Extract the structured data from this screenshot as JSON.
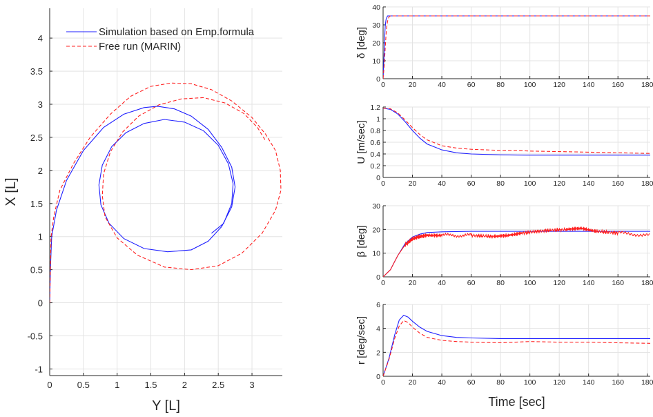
{
  "colors": {
    "sim": "#1f1fff",
    "marin": "#ff2020",
    "grid": "#e3e3e3",
    "axis": "#262626"
  },
  "chart_data": [
    {
      "type": "line",
      "xlabel": "Y [L]",
      "ylabel": "X [L]",
      "xlim": [
        0,
        3.45
      ],
      "ylim": [
        -1.1,
        4.45
      ],
      "xticks": [
        "0",
        "0.5",
        "1",
        "1.5",
        "2",
        "2.5",
        "3"
      ],
      "yticks": [
        "-1",
        "-0.5",
        "0",
        "0.5",
        "1",
        "1.5",
        "2",
        "2.5",
        "3",
        "3.5",
        "4"
      ],
      "grid": true,
      "legend_position": "top-left",
      "series": [
        {
          "name": "Simulation based on Emp.formula",
          "style": "solid",
          "points": [
            [
              0,
              0
            ],
            [
              0.01,
              0.5
            ],
            [
              0.03,
              1.0
            ],
            [
              0.1,
              1.4
            ],
            [
              0.25,
              1.85
            ],
            [
              0.5,
              2.3
            ],
            [
              0.8,
              2.65
            ],
            [
              1.1,
              2.85
            ],
            [
              1.4,
              2.95
            ],
            [
              1.6,
              2.97
            ],
            [
              1.85,
              2.93
            ],
            [
              2.1,
              2.82
            ],
            [
              2.35,
              2.62
            ],
            [
              2.55,
              2.35
            ],
            [
              2.7,
              2.05
            ],
            [
              2.75,
              1.75
            ],
            [
              2.7,
              1.45
            ],
            [
              2.55,
              1.15
            ],
            [
              2.35,
              0.93
            ],
            [
              2.1,
              0.8
            ],
            [
              1.75,
              0.77
            ],
            [
              1.4,
              0.82
            ],
            [
              1.1,
              0.97
            ],
            [
              0.88,
              1.2
            ],
            [
              0.76,
              1.48
            ],
            [
              0.73,
              1.78
            ],
            [
              0.78,
              2.08
            ],
            [
              0.92,
              2.36
            ],
            [
              1.13,
              2.57
            ],
            [
              1.4,
              2.71
            ],
            [
              1.7,
              2.77
            ],
            [
              2.0,
              2.73
            ],
            [
              2.28,
              2.6
            ],
            [
              2.5,
              2.38
            ],
            [
              2.65,
              2.1
            ],
            [
              2.72,
              1.8
            ],
            [
              2.7,
              1.5
            ],
            [
              2.58,
              1.2
            ],
            [
              2.4,
              1.05
            ]
          ]
        },
        {
          "name": "Free run (MARIN)",
          "style": "dashed",
          "points": [
            [
              0,
              0
            ],
            [
              0.01,
              0.5
            ],
            [
              0.02,
              1.0
            ],
            [
              0.06,
              1.3
            ],
            [
              0.15,
              1.7
            ],
            [
              0.35,
              2.1
            ],
            [
              0.6,
              2.5
            ],
            [
              0.9,
              2.85
            ],
            [
              1.2,
              3.12
            ],
            [
              1.5,
              3.27
            ],
            [
              1.8,
              3.32
            ],
            [
              2.1,
              3.31
            ],
            [
              2.4,
              3.22
            ],
            [
              2.7,
              3.05
            ],
            [
              3.0,
              2.8
            ],
            [
              3.2,
              2.55
            ],
            [
              3.35,
              2.3
            ],
            [
              3.42,
              2.0
            ],
            [
              3.43,
              1.7
            ],
            [
              3.35,
              1.4
            ],
            [
              3.15,
              1.05
            ],
            [
              2.85,
              0.75
            ],
            [
              2.5,
              0.56
            ],
            [
              2.1,
              0.5
            ],
            [
              1.7,
              0.54
            ],
            [
              1.3,
              0.72
            ],
            [
              1.0,
              0.98
            ],
            [
              0.82,
              1.3
            ],
            [
              0.78,
              1.62
            ],
            [
              0.8,
              1.95
            ],
            [
              0.9,
              2.28
            ],
            [
              1.08,
              2.58
            ],
            [
              1.32,
              2.82
            ],
            [
              1.62,
              2.99
            ],
            [
              1.95,
              3.08
            ],
            [
              2.28,
              3.1
            ],
            [
              2.6,
              3.02
            ],
            [
              2.88,
              2.86
            ],
            [
              3.08,
              2.65
            ],
            [
              3.2,
              2.45
            ]
          ]
        }
      ]
    },
    {
      "type": "line",
      "ylabel": "δ [deg]",
      "xlim": [
        0,
        182
      ],
      "ylim": [
        0,
        40
      ],
      "xticks": [
        "0",
        "20",
        "40",
        "60",
        "80",
        "100",
        "120",
        "140",
        "160",
        "180"
      ],
      "yticks": [
        "0",
        "10",
        "20",
        "30",
        "40"
      ],
      "grid": true,
      "series": [
        {
          "name": "",
          "style": "solid",
          "color": "sim",
          "points": [
            [
              0,
              0
            ],
            [
              0.5,
              10
            ],
            [
              1,
              22
            ],
            [
              1.5,
              30
            ],
            [
              2,
              33
            ],
            [
              3,
              35
            ],
            [
              182,
              35
            ]
          ]
        },
        {
          "name": "",
          "style": "dashed",
          "color": "marin",
          "points": [
            [
              0,
              0
            ],
            [
              0.8,
              8
            ],
            [
              1.5,
              18
            ],
            [
              2.2,
              27
            ],
            [
              3,
              32
            ],
            [
              4,
              34.5
            ],
            [
              5,
              35
            ],
            [
              182,
              35
            ]
          ]
        }
      ]
    },
    {
      "type": "line",
      "ylabel": "U [m/sec]",
      "xlim": [
        0,
        182
      ],
      "ylim": [
        0,
        1.2
      ],
      "xticks": [
        "0",
        "20",
        "40",
        "60",
        "80",
        "100",
        "120",
        "140",
        "160",
        "180"
      ],
      "yticks": [
        "0",
        "0.2",
        "0.4",
        "0.6",
        "0.8",
        "1",
        "1.2"
      ],
      "grid": true,
      "series": [
        {
          "name": "",
          "style": "solid",
          "color": "sim",
          "points": [
            [
              0,
              1.18
            ],
            [
              5,
              1.16
            ],
            [
              10,
              1.08
            ],
            [
              15,
              0.95
            ],
            [
              20,
              0.8
            ],
            [
              25,
              0.67
            ],
            [
              30,
              0.57
            ],
            [
              40,
              0.47
            ],
            [
              50,
              0.42
            ],
            [
              60,
              0.4
            ],
            [
              80,
              0.385
            ],
            [
              100,
              0.38
            ],
            [
              140,
              0.38
            ],
            [
              182,
              0.38
            ]
          ]
        },
        {
          "name": "",
          "style": "dashed",
          "color": "marin",
          "points": [
            [
              0,
              1.18
            ],
            [
              5,
              1.17
            ],
            [
              10,
              1.1
            ],
            [
              15,
              0.98
            ],
            [
              20,
              0.85
            ],
            [
              25,
              0.73
            ],
            [
              30,
              0.64
            ],
            [
              40,
              0.54
            ],
            [
              50,
              0.5
            ],
            [
              60,
              0.48
            ],
            [
              80,
              0.46
            ],
            [
              90,
              0.46
            ],
            [
              100,
              0.45
            ],
            [
              120,
              0.44
            ],
            [
              140,
              0.43
            ],
            [
              160,
              0.42
            ],
            [
              182,
              0.41
            ]
          ]
        }
      ]
    },
    {
      "type": "line",
      "ylabel": "β [deg]",
      "xlim": [
        0,
        182
      ],
      "ylim": [
        0,
        30
      ],
      "xticks": [
        "0",
        "20",
        "40",
        "60",
        "80",
        "100",
        "120",
        "140",
        "160",
        "180"
      ],
      "yticks": [
        "0",
        "10",
        "20",
        "30"
      ],
      "grid": true,
      "series": [
        {
          "name": "",
          "style": "solid",
          "color": "sim",
          "points": [
            [
              0,
              0
            ],
            [
              5,
              3
            ],
            [
              10,
              9
            ],
            [
              15,
              14
            ],
            [
              20,
              16.8
            ],
            [
              25,
              18
            ],
            [
              30,
              18.7
            ],
            [
              40,
              19
            ],
            [
              60,
              19.2
            ],
            [
              100,
              19.2
            ],
            [
              140,
              19.2
            ],
            [
              182,
              19.2
            ]
          ]
        },
        {
          "name": "",
          "style": "noisy",
          "color": "marin",
          "points": [
            [
              0,
              0
            ],
            [
              5,
              3
            ],
            [
              10,
              9
            ],
            [
              15,
              13.5
            ],
            [
              20,
              16
            ],
            [
              25,
              17
            ],
            [
              30,
              17.5
            ],
            [
              40,
              17.5
            ],
            [
              60,
              17.5
            ],
            [
              75,
              17
            ],
            [
              85,
              17.5
            ],
            [
              95,
              18.5
            ],
            [
              110,
              19.5
            ],
            [
              125,
              20
            ],
            [
              135,
              20.5
            ],
            [
              145,
              19.2
            ],
            [
              160,
              18.5
            ],
            [
              182,
              17.5
            ]
          ]
        }
      ]
    },
    {
      "type": "line",
      "xlabel": "Time [sec]",
      "ylabel": "r [deg/sec]",
      "xlim": [
        0,
        182
      ],
      "ylim": [
        0,
        6
      ],
      "xticks": [
        "0",
        "20",
        "40",
        "60",
        "80",
        "100",
        "120",
        "140",
        "160",
        "180"
      ],
      "yticks": [
        "0",
        "2",
        "4",
        "6"
      ],
      "grid": true,
      "series": [
        {
          "name": "",
          "style": "solid",
          "color": "sim",
          "points": [
            [
              0,
              0
            ],
            [
              4,
              1.5
            ],
            [
              8,
              3.5
            ],
            [
              11,
              4.7
            ],
            [
              14,
              5.1
            ],
            [
              17,
              4.95
            ],
            [
              20,
              4.6
            ],
            [
              25,
              4.1
            ],
            [
              30,
              3.75
            ],
            [
              40,
              3.4
            ],
            [
              50,
              3.25
            ],
            [
              60,
              3.2
            ],
            [
              80,
              3.15
            ],
            [
              120,
              3.15
            ],
            [
              182,
              3.15
            ]
          ]
        },
        {
          "name": "",
          "style": "dashed",
          "color": "marin",
          "points": [
            [
              0,
              0
            ],
            [
              4,
              1.4
            ],
            [
              8,
              3.2
            ],
            [
              11,
              4.2
            ],
            [
              14,
              4.65
            ],
            [
              17,
              4.5
            ],
            [
              20,
              4.1
            ],
            [
              25,
              3.6
            ],
            [
              30,
              3.25
            ],
            [
              40,
              3.0
            ],
            [
              50,
              2.9
            ],
            [
              60,
              2.85
            ],
            [
              80,
              2.8
            ],
            [
              100,
              2.9
            ],
            [
              120,
              2.85
            ],
            [
              140,
              2.85
            ],
            [
              160,
              2.8
            ],
            [
              182,
              2.75
            ]
          ]
        }
      ]
    }
  ]
}
